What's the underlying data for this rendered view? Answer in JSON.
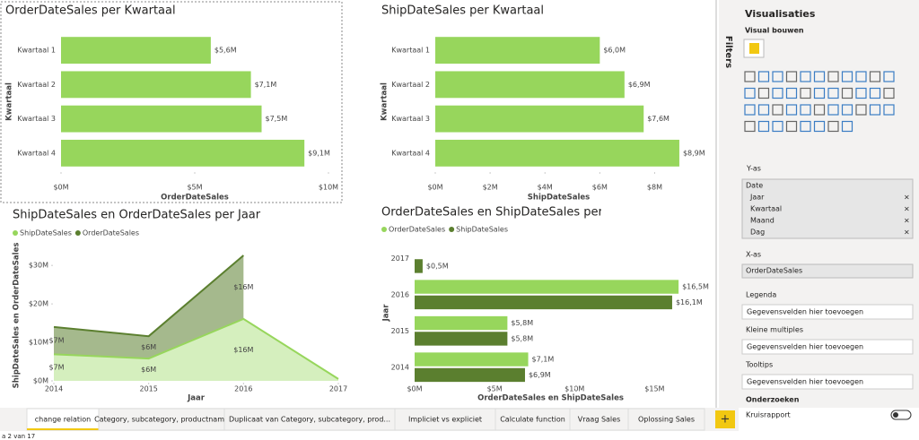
{
  "chart_data": [
    {
      "type": "hbar",
      "title": "OrderDateSales per Kwartaal",
      "x_label": "OrderDateSales",
      "y_label": "Kwartaal",
      "categories": [
        "Kwartaal 1",
        "Kwartaal 2",
        "Kwartaal 3",
        "Kwartaal 4"
      ],
      "values": [
        5.6,
        7.1,
        7.5,
        9.1
      ],
      "value_labels": [
        "$5,6M",
        "$7,1M",
        "$7,5M",
        "$9,1M"
      ],
      "color": "#97d65c",
      "xlim": [
        0,
        10
      ],
      "xticks": [
        {
          "value": 0,
          "label": "$0M"
        },
        {
          "value": 5,
          "label": "$5M"
        },
        {
          "value": 10,
          "label": "$10M"
        }
      ]
    },
    {
      "type": "hbar",
      "title": "ShipDateSales per Kwartaal",
      "x_label": "ShipDateSales",
      "y_label": "Kwartaal",
      "categories": [
        "Kwartaal 1",
        "Kwartaal 2",
        "Kwartaal 3",
        "Kwartaal 4"
      ],
      "values": [
        6.0,
        6.9,
        7.6,
        8.9
      ],
      "value_labels": [
        "$6,0M",
        "$6,9M",
        "$7,6M",
        "$8,9M"
      ],
      "color": "#97d65c",
      "xlim": [
        0,
        9
      ],
      "xticks": [
        {
          "value": 0,
          "label": "$0M"
        },
        {
          "value": 2,
          "label": "$2M"
        },
        {
          "value": 4,
          "label": "$4M"
        },
        {
          "value": 6,
          "label": "$6M"
        },
        {
          "value": 8,
          "label": "$8M"
        }
      ]
    },
    {
      "type": "stacked_area",
      "title": "ShipDateSales en OrderDateSales per Jaar",
      "x_label": "Jaar",
      "y_label": "ShipDateSales en OrderDateSales",
      "x": [
        2014,
        2015,
        2016,
        2017
      ],
      "xlim": [
        2014,
        2017
      ],
      "xticks": [
        2014,
        2015,
        2016,
        2017
      ],
      "series": [
        {
          "name": "ShipDateSales",
          "color": "#97d65c",
          "values": [
            6.9,
            5.8,
            16.1,
            0.5
          ],
          "value_labels": [
            "$7M",
            "$6M",
            "$16M",
            null
          ]
        },
        {
          "name": "OrderDateSales",
          "color": "#5b7f2f",
          "values": [
            7.1,
            5.8,
            16.5,
            null
          ],
          "value_labels": [
            "$7M",
            "$6M",
            "$16M",
            null
          ]
        }
      ],
      "ylim": [
        0,
        34
      ],
      "yticks": [
        {
          "value": 0,
          "label": "$0M"
        },
        {
          "value": 10,
          "label": "$10M"
        },
        {
          "value": 20,
          "label": "$20M"
        },
        {
          "value": 30,
          "label": "$30M"
        }
      ],
      "legend": "top-left"
    },
    {
      "type": "hbar",
      "title": "OrderDateSales en ShipDateSales per Jaar",
      "x_label": "OrderDateSales en ShipDateSales",
      "y_label": "Jaar",
      "categories": [
        "2017",
        "2016",
        "2015",
        "2014"
      ],
      "series": [
        {
          "name": "OrderDateSales",
          "color": "#97d65c",
          "values": [
            null,
            16.5,
            5.8,
            7.1
          ],
          "value_labels": [
            null,
            "$16,5M",
            "$5,8M",
            "$7,1M"
          ]
        },
        {
          "name": "ShipDateSales",
          "color": "#5b7f2f",
          "values": [
            0.5,
            16.1,
            5.8,
            6.9
          ],
          "value_labels": [
            "$0,5M",
            "$16,1M",
            "$5,8M",
            "$6,9M"
          ]
        }
      ],
      "xlim": [
        0,
        17
      ],
      "xticks": [
        {
          "value": 0,
          "label": "$0M"
        },
        {
          "value": 5,
          "label": "$5M"
        },
        {
          "value": 10,
          "label": "$10M"
        },
        {
          "value": 15,
          "label": "$15M"
        }
      ],
      "legend": "top-left"
    }
  ],
  "ui": {
    "filters": "Filters",
    "panel_title": "Visualisaties",
    "build": "Visual bouwen",
    "y_axis_well": "Y-as",
    "y_field": "Date",
    "y_subfields": [
      "Jaar",
      "Kwartaal",
      "Maand",
      "Dag"
    ],
    "x_axis_well": "X-as",
    "x_field": "OrderDateSales",
    "wells": [
      {
        "name": "Legenda",
        "placeholder": "Gegevensvelden hier toevoegen"
      },
      {
        "name": "Kleine multiples",
        "placeholder": "Gegevensvelden hier toevoegen"
      },
      {
        "name": "Tooltips",
        "placeholder": "Gegevensvelden hier toevoegen"
      }
    ],
    "explore": "Onderzoeken",
    "cross_report": "Kruisrapport",
    "tabs": [
      "change relation",
      "Category, subcategory, productname",
      "Duplicaat van Category, subcategory, prod...",
      "Impliciet vs expliciet",
      "Calculate function",
      "Vraag Sales",
      "Oplossing Sales"
    ],
    "status": "a 2 van 17"
  }
}
